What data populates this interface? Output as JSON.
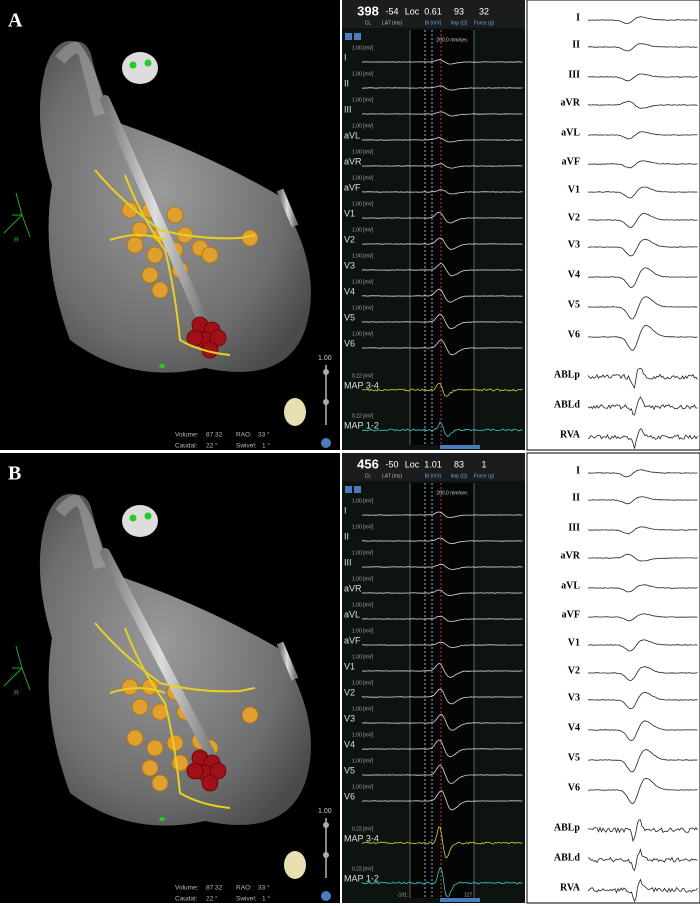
{
  "panels": [
    {
      "label": "A",
      "map_info": {
        "volume_label": "Volume:",
        "volume": "87.32",
        "rao_label": "RAO:",
        "rao": "33 °",
        "caudal_label": "Caudal:",
        "caudal": "22 °",
        "swivel_label": "Swivel:",
        "swivel": "1 °"
      },
      "axis_label": "R",
      "slider_label": "1.00",
      "egm": {
        "header_values": [
          "398",
          "-54",
          "Loc",
          "0.61",
          "93",
          "32"
        ],
        "header_labels": [
          "CL",
          "LAT (ms)",
          "Bi (mV)",
          "Imp (Ω)",
          "Force (g)"
        ],
        "speed": "200.0 mm/sec",
        "channels": [
          {
            "name": "I",
            "scale": "1.00 [mV]"
          },
          {
            "name": "II",
            "scale": "1.00 [mV]"
          },
          {
            "name": "III",
            "scale": "1.00 [mV]"
          },
          {
            "name": "aVL",
            "scale": "1.00 [mV]"
          },
          {
            "name": "aVR",
            "scale": "1.00 [mV]"
          },
          {
            "name": "aVF",
            "scale": "1.00 [mV]"
          },
          {
            "name": "V1",
            "scale": "1.00 [mV]"
          },
          {
            "name": "V2",
            "scale": "1.00 [mV]"
          },
          {
            "name": "V3",
            "scale": "1.00 [mV]"
          },
          {
            "name": "V4",
            "scale": "1.00 [mV]"
          },
          {
            "name": "V5",
            "scale": "1.00 [mV]"
          },
          {
            "name": "V6",
            "scale": "1.00 [mV]"
          },
          {
            "name": "MAP 3-4",
            "scale": "0.22 [mV]"
          },
          {
            "name": "MAP 1-2",
            "scale": "0.22 [mV]"
          }
        ],
        "footer": []
      },
      "ecg_leads": [
        "I",
        "II",
        "III",
        "aVR",
        "aVL",
        "aVF",
        "V1",
        "V2",
        "V3",
        "V4",
        "V5",
        "V6",
        "ABLp",
        "ABLd",
        "RVA"
      ]
    },
    {
      "label": "B",
      "map_info": {
        "volume_label": "Volume:",
        "volume": "87.32",
        "rao_label": "RAO:",
        "rao": "33 °",
        "caudal_label": "Caudal:",
        "caudal": "22 °",
        "swivel_label": "Swivel:",
        "swivel": "1 °"
      },
      "axis_label": "R",
      "slider_label": "1.00",
      "egm": {
        "header_values": [
          "456",
          "-50",
          "Loc",
          "1.01",
          "83",
          "1"
        ],
        "header_labels": [
          "CL",
          "LAT (ms)",
          "Bi (mV)",
          "Imp (Ω)",
          "Force (g)"
        ],
        "speed": "200.0 mm/sec",
        "channels": [
          {
            "name": "I",
            "scale": "1.00 [mV]"
          },
          {
            "name": "II",
            "scale": "1.00 [mV]"
          },
          {
            "name": "III",
            "scale": "1.00 [mV]"
          },
          {
            "name": "aVR",
            "scale": "1.00 [mV]"
          },
          {
            "name": "aVL",
            "scale": "1.00 [mV]"
          },
          {
            "name": "aVF",
            "scale": "1.00 [mV]"
          },
          {
            "name": "V1",
            "scale": "1.00 [mV]"
          },
          {
            "name": "V2",
            "scale": "1.00 [mV]"
          },
          {
            "name": "V3",
            "scale": "1.00 [mV]"
          },
          {
            "name": "V4",
            "scale": "1.00 [mV]"
          },
          {
            "name": "V5",
            "scale": "1.00 [mV]"
          },
          {
            "name": "V6",
            "scale": "1.00 [mV]"
          },
          {
            "name": "MAP 3-4",
            "scale": "0.22 [mV]"
          },
          {
            "name": "MAP 1-2",
            "scale": "0.22 [mV]"
          }
        ],
        "footer": [
          "-101",
          "127"
        ]
      },
      "ecg_leads": [
        "I",
        "II",
        "III",
        "aVR",
        "aVL",
        "aVF",
        "V1",
        "V2",
        "V3",
        "V4",
        "V5",
        "V6",
        "ABLp",
        "ABLd",
        "RVA"
      ]
    }
  ]
}
